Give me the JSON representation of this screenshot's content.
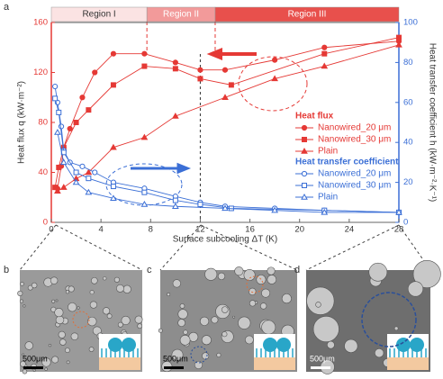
{
  "panel_label": "a",
  "chart_data": {
    "type": "line",
    "xlabel": "Surface subcooling ΔT (K)",
    "ylabel": "Heat flux q (kW·m⁻²)",
    "y2label": "Heat transfer coefficient h (kW·m⁻²·K⁻¹)",
    "xlim": [
      0,
      28
    ],
    "xticks": [
      0,
      4,
      8,
      12,
      16,
      20,
      24,
      28
    ],
    "ylim": [
      0,
      160
    ],
    "yticks": [
      0,
      40,
      80,
      120,
      160
    ],
    "y2lim": [
      0,
      100
    ],
    "y2ticks": [
      0,
      20,
      40,
      60,
      80,
      100
    ],
    "regions": [
      {
        "label": "Region I",
        "x": [
          0,
          7.7
        ]
      },
      {
        "label": "Region II",
        "x": [
          7.7,
          13.2
        ]
      },
      {
        "label": "Region III",
        "x": [
          13.2,
          28
        ]
      }
    ],
    "legend_titles": [
      "Heat flux",
      "Heat transfer coefficient"
    ],
    "series": [
      {
        "name": "Nanowired_20 μm",
        "color": "#e53935",
        "marker": "circle",
        "filled": true,
        "axis": "y",
        "x": [
          0.5,
          0.8,
          1,
          1.5,
          2.5,
          3.5,
          5,
          7.5,
          10,
          12,
          14,
          18,
          22,
          28
        ],
        "values": [
          27,
          45,
          60,
          75,
          100,
          120,
          135,
          135,
          128,
          122,
          122,
          130,
          140,
          145
        ]
      },
      {
        "name": "Nanowired_30 μm",
        "color": "#e53935",
        "marker": "square",
        "filled": true,
        "axis": "y",
        "x": [
          0.3,
          0.6,
          1,
          2,
          3,
          5,
          7.5,
          10,
          12,
          14.5,
          22,
          28
        ],
        "values": [
          28,
          44,
          60,
          80,
          90,
          110,
          125,
          123,
          115,
          110,
          135,
          148
        ]
      },
      {
        "name": "Plain",
        "color": "#e53935",
        "marker": "triangle",
        "filled": true,
        "axis": "y",
        "x": [
          0.5,
          1,
          2,
          3,
          5,
          7.5,
          10,
          14,
          18,
          22,
          28
        ],
        "values": [
          25,
          28,
          35,
          40,
          60,
          68,
          85,
          100,
          115,
          125,
          142
        ]
      },
      {
        "name": "Nanowired_20 μm",
        "color": "#3b6fd6",
        "marker": "circle",
        "filled": false,
        "axis": "y2",
        "x": [
          0.3,
          0.5,
          0.8,
          1,
          1.5,
          2.5,
          3.5,
          5,
          7.5,
          10,
          12,
          14,
          18,
          22,
          28
        ],
        "values": [
          68,
          60,
          48,
          36,
          30,
          28,
          25,
          20,
          17,
          13,
          10,
          8,
          7,
          6,
          5
        ]
      },
      {
        "name": "Nanowired_30 μm",
        "color": "#3b6fd6",
        "marker": "square",
        "filled": false,
        "axis": "y2",
        "x": [
          0.3,
          0.6,
          1,
          2,
          3,
          5,
          7.5,
          10,
          12,
          14.5,
          22,
          28
        ],
        "values": [
          62,
          55,
          35,
          25,
          22,
          18,
          15,
          11,
          9,
          7,
          6,
          5
        ]
      },
      {
        "name": "Plain",
        "color": "#3b6fd6",
        "marker": "triangle",
        "filled": false,
        "axis": "y2",
        "x": [
          0.5,
          1,
          2,
          3,
          5,
          7.5,
          10,
          14,
          18,
          22,
          28
        ],
        "values": [
          45,
          30,
          20,
          15,
          12,
          9,
          8,
          7,
          6,
          5,
          5
        ]
      }
    ]
  },
  "panels": [
    {
      "label": "b",
      "scale": "500μm"
    },
    {
      "label": "c",
      "scale": "500μm"
    },
    {
      "label": "d",
      "scale": "500μm"
    }
  ]
}
